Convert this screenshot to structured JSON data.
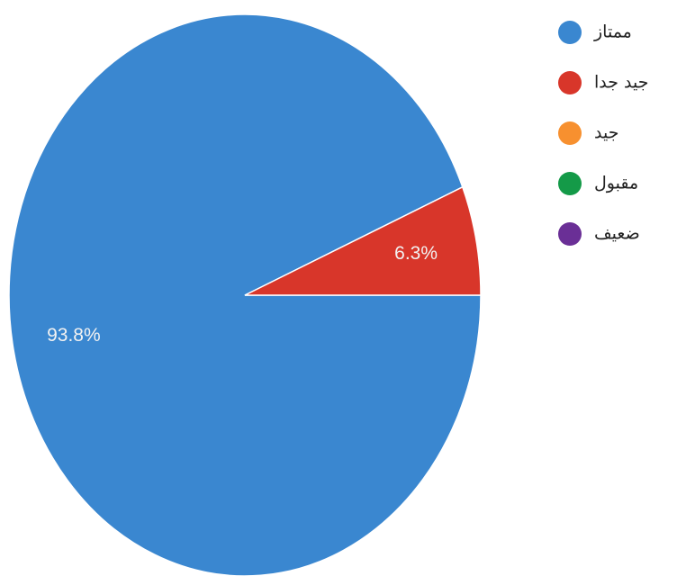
{
  "chart_data": {
    "type": "pie",
    "categories": [
      "ممتاز",
      "جيد جدا",
      "جيد",
      "مقبول",
      "ضعيف"
    ],
    "values": [
      93.8,
      6.3,
      0,
      0,
      0
    ],
    "value_labels": [
      "93.8%",
      "6.3%",
      null,
      null,
      null
    ],
    "colors": [
      "#3a87d0",
      "#d8362a",
      "#f7902f",
      "#149a48",
      "#6a2f96"
    ],
    "legend": "right"
  }
}
